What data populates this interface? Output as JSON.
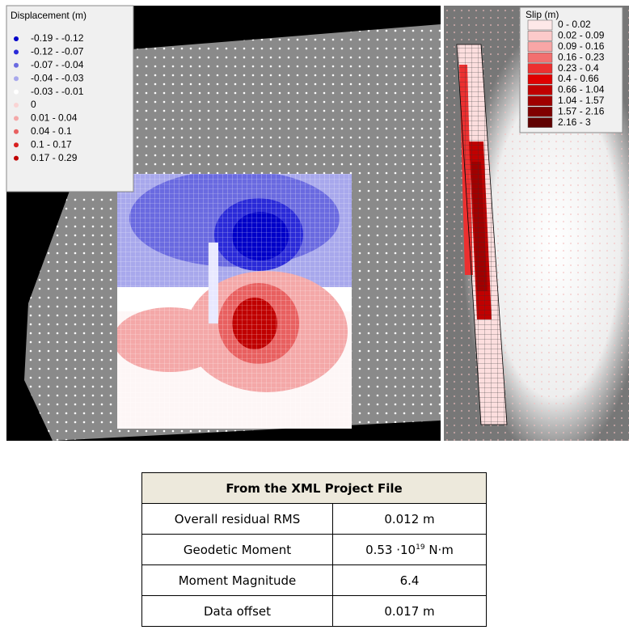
{
  "displacement_legend": {
    "title": "Displacement (m)",
    "items": [
      {
        "label": "-0.19 - -0.12",
        "color": "#0000c8"
      },
      {
        "label": "-0.12 - -0.07",
        "color": "#2a2ad8"
      },
      {
        "label": "-0.07 - -0.04",
        "color": "#6a6ae0"
      },
      {
        "label": "-0.04 - -0.03",
        "color": "#a8a8ec"
      },
      {
        "label": "-0.03 - -0.01",
        "color": "#ffffff"
      },
      {
        "label": "0",
        "color": "#fad4d4"
      },
      {
        "label": "0.01 - 0.04",
        "color": "#f4a8a8"
      },
      {
        "label": "0.04 - 0.1",
        "color": "#e86060"
      },
      {
        "label": "0.1 - 0.17",
        "color": "#d82020"
      },
      {
        "label": "0.17 - 0.29",
        "color": "#c00000"
      }
    ]
  },
  "slip_legend": {
    "title": "Slip (m)",
    "items": [
      {
        "label": "0 - 0.02",
        "color": "#fde8e8"
      },
      {
        "label": "0.02 - 0.09",
        "color": "#fccaca"
      },
      {
        "label": "0.09 - 0.16",
        "color": "#f8a6a6"
      },
      {
        "label": "0.16 - 0.23",
        "color": "#f27070"
      },
      {
        "label": "0.23 - 0.4",
        "color": "#ec3030"
      },
      {
        "label": "0.4 - 0.66",
        "color": "#e00000"
      },
      {
        "label": "0.66 - 1.04",
        "color": "#c00000"
      },
      {
        "label": "1.04 - 1.57",
        "color": "#a00000"
      },
      {
        "label": "1.57 - 2.16",
        "color": "#800000"
      },
      {
        "label": "2.16 - 3",
        "color": "#600000"
      }
    ]
  },
  "table": {
    "title": "From the XML Project File",
    "rows": [
      [
        "Overall residual RMS",
        "0.012 m"
      ],
      [
        "Geodetic Moment",
        {
          "mantissa": "0.53 ·10",
          "exponent": "19",
          "unit": " N·m"
        }
      ],
      [
        "Moment Magnitude",
        "6.4"
      ],
      [
        "Data offset",
        "0.017 m"
      ]
    ]
  }
}
